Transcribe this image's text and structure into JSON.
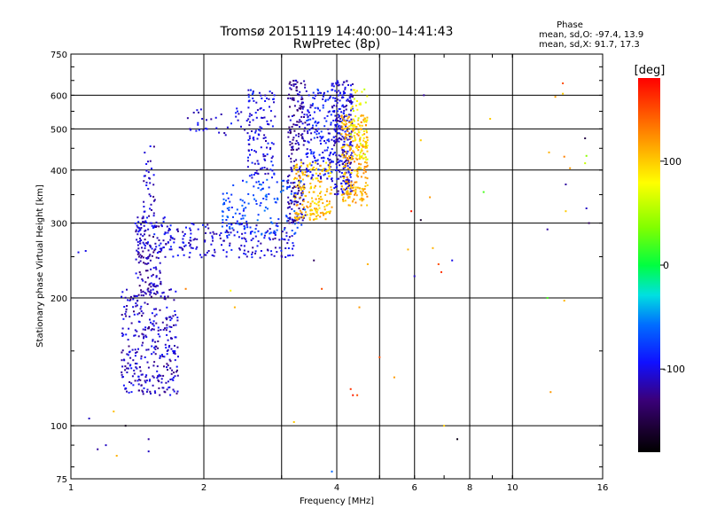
{
  "chart_data": {
    "type": "scatter",
    "title": "Tromsø 20151119 14:40:00–14:41:43",
    "subtitle": "RwPretec (8p)",
    "xlabel": "Frequency [MHz]",
    "ylabel": "Stationary phase Virtual Height [km]",
    "x_scale": "log",
    "y_scale": "log",
    "xlim": [
      1,
      16
    ],
    "ylim": [
      75,
      750
    ],
    "x_ticks": [
      1,
      2,
      4,
      6,
      8,
      10,
      16
    ],
    "x_tick_labels": [
      "1",
      "2",
      "4",
      "6",
      "8",
      "10",
      "16"
    ],
    "x_minor_grid": [
      3,
      5
    ],
    "y_ticks": [
      75,
      100,
      200,
      300,
      400,
      500,
      600,
      750
    ],
    "y_tick_labels": [
      "75",
      "100",
      "200",
      "300",
      "400",
      "500",
      "600",
      "750"
    ],
    "grid": true,
    "stats_title": "Phase",
    "stats_lines": [
      "mean, sd,O: -97.4, 13.9",
      "mean, sd,X:  91.7, 17.3"
    ],
    "colorbar": {
      "label": "[deg]",
      "range": [
        -180,
        180
      ],
      "ticks": [
        100,
        0,
        -100
      ],
      "tick_labels": [
        "100",
        "0",
        "-100"
      ],
      "placement": "right"
    },
    "regions": [
      {
        "x": [
          1.3,
          1.75
        ],
        "y": [
          118,
          210
        ],
        "phase": -110,
        "density": 320
      },
      {
        "x": [
          1.4,
          1.6
        ],
        "y": [
          200,
          300
        ],
        "phase": -115,
        "density": 120
      },
      {
        "x": [
          1.45,
          1.55
        ],
        "y": [
          300,
          460
        ],
        "phase": -110,
        "density": 40
      },
      {
        "x": [
          1.4,
          1.7
        ],
        "y": [
          260,
          310
        ],
        "phase": -100,
        "density": 50
      },
      {
        "x": [
          1.6,
          3.2
        ],
        "y": [
          248,
          300
        ],
        "phase": -105,
        "density": 200
      },
      {
        "x": [
          2.2,
          3.4
        ],
        "y": [
          280,
          380
        ],
        "phase": -75,
        "density": 150
      },
      {
        "x": [
          1.8,
          2.8
        ],
        "y": [
          480,
          560
        ],
        "phase": -105,
        "density": 40
      },
      {
        "x": [
          2.5,
          2.9
        ],
        "y": [
          380,
          620
        ],
        "phase": -100,
        "density": 120
      },
      {
        "x": [
          3.1,
          3.4
        ],
        "y": [
          300,
          650
        ],
        "phase": -120,
        "density": 200
      },
      {
        "x": [
          3.4,
          3.9
        ],
        "y": [
          380,
          620
        ],
        "phase": -95,
        "density": 160
      },
      {
        "x": [
          3.9,
          4.35
        ],
        "y": [
          350,
          650
        ],
        "phase": -105,
        "density": 280
      },
      {
        "x": [
          3.2,
          3.9
        ],
        "y": [
          305,
          420
        ],
        "phase": 105,
        "density": 180
      },
      {
        "x": [
          4.1,
          4.7
        ],
        "y": [
          330,
          540
        ],
        "phase": 110,
        "density": 250
      },
      {
        "x": [
          4.3,
          4.7
        ],
        "y": [
          420,
          620
        ],
        "phase": 75,
        "density": 60
      }
    ],
    "scattered_points": [
      {
        "x": 1.04,
        "y": 256,
        "phase": -100
      },
      {
        "x": 1.08,
        "y": 258,
        "phase": -100
      },
      {
        "x": 1.1,
        "y": 104,
        "phase": -110
      },
      {
        "x": 1.15,
        "y": 88,
        "phase": -120
      },
      {
        "x": 1.2,
        "y": 90,
        "phase": -110
      },
      {
        "x": 1.25,
        "y": 108,
        "phase": 105
      },
      {
        "x": 1.27,
        "y": 85,
        "phase": 110
      },
      {
        "x": 1.33,
        "y": 100,
        "phase": -170
      },
      {
        "x": 1.5,
        "y": 87,
        "phase": -110
      },
      {
        "x": 1.5,
        "y": 93,
        "phase": -120
      },
      {
        "x": 1.82,
        "y": 210,
        "phase": 130
      },
      {
        "x": 2.3,
        "y": 208,
        "phase": 80
      },
      {
        "x": 2.35,
        "y": 190,
        "phase": 110
      },
      {
        "x": 3.2,
        "y": 102,
        "phase": 100
      },
      {
        "x": 3.55,
        "y": 245,
        "phase": -140
      },
      {
        "x": 3.7,
        "y": 210,
        "phase": 150
      },
      {
        "x": 3.9,
        "y": 78,
        "phase": -60
      },
      {
        "x": 4.3,
        "y": 122,
        "phase": 160
      },
      {
        "x": 4.35,
        "y": 118,
        "phase": 170
      },
      {
        "x": 4.45,
        "y": 118,
        "phase": 150
      },
      {
        "x": 4.5,
        "y": 190,
        "phase": 120
      },
      {
        "x": 4.7,
        "y": 240,
        "phase": 110
      },
      {
        "x": 5.0,
        "y": 145,
        "phase": 150
      },
      {
        "x": 5.4,
        "y": 130,
        "phase": 120
      },
      {
        "x": 5.8,
        "y": 260,
        "phase": 110
      },
      {
        "x": 5.9,
        "y": 320,
        "phase": 170
      },
      {
        "x": 6.0,
        "y": 225,
        "phase": -110
      },
      {
        "x": 6.2,
        "y": 470,
        "phase": 100
      },
      {
        "x": 6.2,
        "y": 305,
        "phase": -160
      },
      {
        "x": 6.3,
        "y": 600,
        "phase": -120
      },
      {
        "x": 6.5,
        "y": 345,
        "phase": 120
      },
      {
        "x": 6.6,
        "y": 262,
        "phase": 110
      },
      {
        "x": 6.8,
        "y": 240,
        "phase": 150
      },
      {
        "x": 6.9,
        "y": 230,
        "phase": 160
      },
      {
        "x": 7.0,
        "y": 100,
        "phase": 100
      },
      {
        "x": 7.3,
        "y": 245,
        "phase": -100
      },
      {
        "x": 7.5,
        "y": 93,
        "phase": -170
      },
      {
        "x": 8.6,
        "y": 355,
        "phase": 20
      },
      {
        "x": 8.9,
        "y": 528,
        "phase": 100
      },
      {
        "x": 12.0,
        "y": 290,
        "phase": -120
      },
      {
        "x": 12.0,
        "y": 200,
        "phase": 20
      },
      {
        "x": 12.1,
        "y": 440,
        "phase": 110
      },
      {
        "x": 12.2,
        "y": 120,
        "phase": 120
      },
      {
        "x": 12.5,
        "y": 595,
        "phase": 120
      },
      {
        "x": 13.0,
        "y": 640,
        "phase": 150
      },
      {
        "x": 13.0,
        "y": 605,
        "phase": 100
      },
      {
        "x": 13.1,
        "y": 430,
        "phase": 130
      },
      {
        "x": 13.2,
        "y": 370,
        "phase": -120
      },
      {
        "x": 13.2,
        "y": 320,
        "phase": 100
      },
      {
        "x": 13.1,
        "y": 197,
        "phase": 110
      },
      {
        "x": 13.5,
        "y": 404,
        "phase": 120
      },
      {
        "x": 14.6,
        "y": 475,
        "phase": -150
      },
      {
        "x": 14.7,
        "y": 432,
        "phase": 40
      },
      {
        "x": 14.6,
        "y": 415,
        "phase": 60
      },
      {
        "x": 14.7,
        "y": 325,
        "phase": -110
      },
      {
        "x": 14.9,
        "y": 300,
        "phase": -140
      }
    ]
  }
}
